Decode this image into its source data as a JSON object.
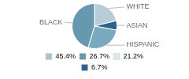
{
  "chart_data": {
    "type": "pie",
    "categories": [
      "WHITE",
      "ASIAN",
      "HISPANIC",
      "BLACK"
    ],
    "values": [
      21.2,
      6.7,
      26.7,
      45.4
    ],
    "colors": [
      "#b8ccd8",
      "#2e6190",
      "#7aaabf",
      "#6699b0"
    ],
    "legend": "bottom",
    "legend_entries": [
      {
        "value": 45.4,
        "label": "45.4%",
        "color": "#aec3d0"
      },
      {
        "value": 26.7,
        "label": "26.7%",
        "color": "#6699b0"
      },
      {
        "value": 21.2,
        "label": "21.2%",
        "color": "#dce8ef"
      },
      {
        "value": 6.7,
        "label": "6.7%",
        "color": "#2e6190"
      }
    ]
  }
}
